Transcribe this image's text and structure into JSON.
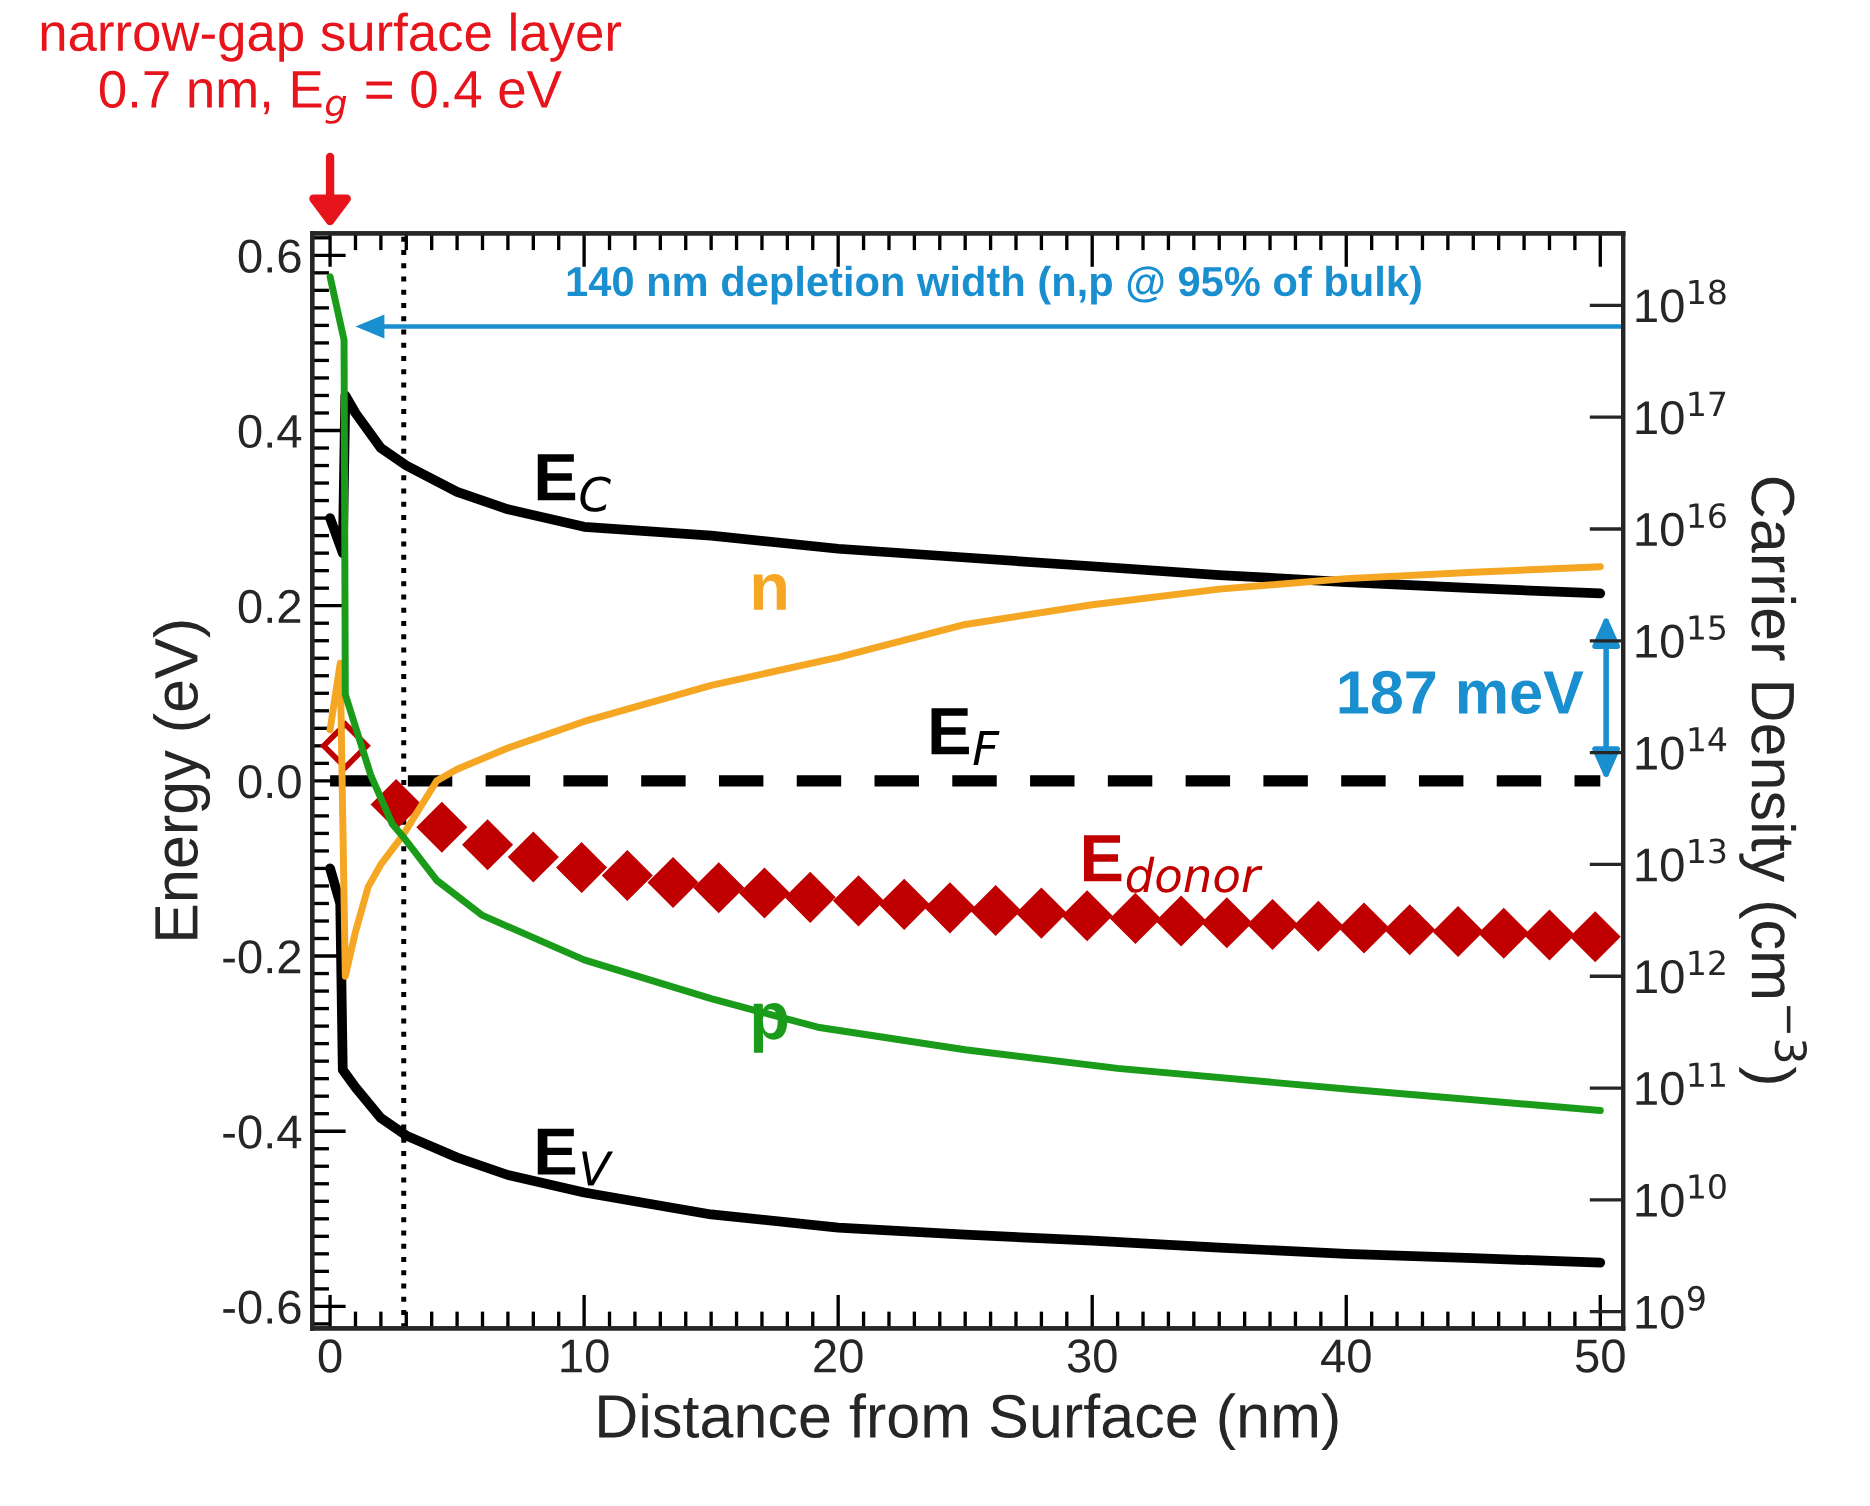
{
  "chart_data": {
    "type": "line",
    "xlabel": "Distance from Surface (nm)",
    "ylabel": "Energy (eV)",
    "y2label": "Carrier Density (cm$^{−3}$)",
    "xlim": [
      -0.7,
      50.9
    ],
    "xticks": [
      0,
      10,
      20,
      30,
      40,
      50
    ],
    "ylim": [
      -0.625,
      0.625
    ],
    "yticks": [
      {
        "value": -0.6,
        "label": "-0.6"
      },
      {
        "value": -0.4,
        "label": "-0.4"
      },
      {
        "value": -0.2,
        "label": "-0.2"
      },
      {
        "value": 0.0,
        "label": "0.0"
      },
      {
        "value": 0.2,
        "label": "0.2"
      },
      {
        "value": 0.4,
        "label": "0.4"
      },
      {
        "value": 0.6,
        "label": "0.6"
      }
    ],
    "log": "y2",
    "y2lim": [
      710000000.0,
      4.4e+18
    ],
    "y2ticks": [
      {
        "value": 1000000000.0,
        "label": "10$^{9}$"
      },
      {
        "value": 10000000000.0,
        "label": "10$^{10}$"
      },
      {
        "value": 100000000000.0,
        "label": "10$^{11}$"
      },
      {
        "value": 1000000000000.0,
        "label": "10$^{12}$"
      },
      {
        "value": 10000000000000.0,
        "label": "10$^{13}$"
      },
      {
        "value": 100000000000000.0,
        "label": "10$^{14}$"
      },
      {
        "value": 1000000000000000.0,
        "label": "10$^{15}$"
      },
      {
        "value": 1e+16,
        "label": "10$^{16}$"
      },
      {
        "value": 1e+17,
        "label": "10$^{17}$"
      },
      {
        "value": 1e+18,
        "label": "10$^{18}$"
      }
    ],
    "grid": false,
    "legend": false,
    "series": [
      {
        "name": "E$_{C}$",
        "color": "#000000",
        "line_style": "solid",
        "x": [
          0,
          0.5,
          0.6,
          1,
          2,
          3,
          5,
          7,
          10,
          15,
          20,
          25,
          30,
          35,
          40,
          45,
          50
        ],
        "values": [
          0.3,
          0.26,
          0.44,
          0.42,
          0.38,
          0.36,
          0.33,
          0.31,
          0.29,
          0.28,
          0.265,
          0.255,
          0.245,
          0.235,
          0.227,
          0.22,
          0.214
        ]
      },
      {
        "name": "E$_{V}$",
        "color": "#000000",
        "line_style": "solid",
        "x": [
          0,
          0.4,
          0.5,
          1,
          2,
          3,
          5,
          7,
          10,
          15,
          20,
          25,
          30,
          35,
          40,
          45,
          50
        ],
        "values": [
          -0.1,
          -0.14,
          -0.33,
          -0.35,
          -0.385,
          -0.405,
          -0.43,
          -0.45,
          -0.47,
          -0.495,
          -0.51,
          -0.518,
          -0.525,
          -0.533,
          -0.54,
          -0.545,
          -0.55
        ]
      },
      {
        "name": "E$_{F}$",
        "color": "#000000",
        "line_style": "dashed",
        "x": [
          0,
          50
        ],
        "values": [
          0,
          0
        ]
      },
      {
        "name": "n",
        "axis": "y2",
        "color": "#f5a623",
        "line_style": "solid",
        "x": [
          0,
          0.4,
          0.6,
          1,
          1.5,
          2,
          2.85,
          4.2,
          5,
          7,
          10,
          15,
          20,
          25,
          30,
          35,
          40,
          45,
          50
        ],
        "values": [
          160000000000000.0,
          630000000000000.0,
          1000000000000.0,
          2500000000000.0,
          6300000000000.0,
          10000000000000.0,
          18000000000000.0,
          56000000000000.0,
          71000000000000.0,
          110000000000000.0,
          190000000000000.0,
          400000000000000.0,
          710000000000000.0,
          1400000000000000.0,
          2100000000000000.0,
          2900000000000000.0,
          3600000000000000.0,
          4100000000000000.0,
          4600000000000000.0
        ]
      },
      {
        "name": "p",
        "axis": "y2",
        "color": "#1a9b1a",
        "line_style": "solid",
        "x": [
          0,
          0.55,
          0.6,
          1.6,
          2.45,
          2.85,
          4.2,
          6,
          10,
          15,
          19.2,
          25,
          31,
          40,
          50
        ],
        "values": [
          1.8e+18,
          4.9e+17,
          330000000000000.0,
          63000000000000.0,
          23000000000000.0,
          18000000000000.0,
          7200000000000.0,
          3500000000000.0,
          1400000000000.0,
          630000000000.0,
          350000000000.0,
          220000000000.0,
          150000000000.0,
          98000000000.0,
          63000000000.0
        ]
      },
      {
        "name": "E$_{donor}$",
        "type": "scatter",
        "color": "#c00000",
        "marker": "diamond",
        "x": [
          2.6,
          4.4,
          6.2,
          8.0,
          9.9,
          11.7,
          13.5,
          15.3,
          17.1,
          18.9,
          20.8,
          22.6,
          24.4,
          26.2,
          28.0,
          29.8,
          31.7,
          33.5,
          35.3,
          37.1,
          38.9,
          40.7,
          42.5,
          44.4,
          46.2,
          48.0,
          49.8
        ],
        "values": [
          -0.027,
          -0.053,
          -0.073,
          -0.087,
          -0.099,
          -0.108,
          -0.116,
          -0.122,
          -0.128,
          -0.133,
          -0.137,
          -0.141,
          -0.145,
          -0.148,
          -0.151,
          -0.154,
          -0.157,
          -0.16,
          -0.162,
          -0.164,
          -0.166,
          -0.168,
          -0.17,
          -0.172,
          -0.174,
          -0.176,
          -0.178
        ]
      },
      {
        "type": "scatter",
        "color": "#c00000",
        "marker": "diamond_open",
        "x": [
          0.6
        ],
        "values": [
          0.04
        ]
      }
    ],
    "ref_lines": [
      {
        "axis": "x",
        "value": 2.9,
        "color": "#000000",
        "line_style": "dotted"
      }
    ],
    "annotations": [
      "narrow-gap surface layer\n0.7 nm, E$_{g}$ = 0.4 eV",
      "140 nm depletion width (n,p @ 95% of bulk)",
      "187 meV"
    ]
  }
}
